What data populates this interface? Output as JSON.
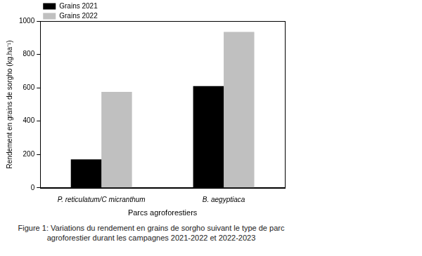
{
  "chart_data": {
    "type": "bar",
    "title": "Figure 1: Variations du rendement en grains de sorgho suivant le type de parc agroforestier durant les campagnes 2021-2022 et 2022-2023",
    "x_label": "Parcs agroforestiers",
    "y_label": "Rendement en grains de sorgho (kg.ha⁻¹)",
    "categories": [
      "P. reticulatum/C micranthum",
      "B. aegyptiaca"
    ],
    "series": [
      {
        "name": "Grains 2021",
        "color": "#000000",
        "values": [
          170,
          610
        ]
      },
      {
        "name": "Grains 2022",
        "color": "#c0c0c0",
        "values": [
          575,
          935
        ]
      }
    ],
    "ylim": [
      0,
      1000
    ],
    "yticks": [
      0,
      200,
      400,
      600,
      800,
      1000
    ],
    "grid": false,
    "legend": "upper left"
  }
}
